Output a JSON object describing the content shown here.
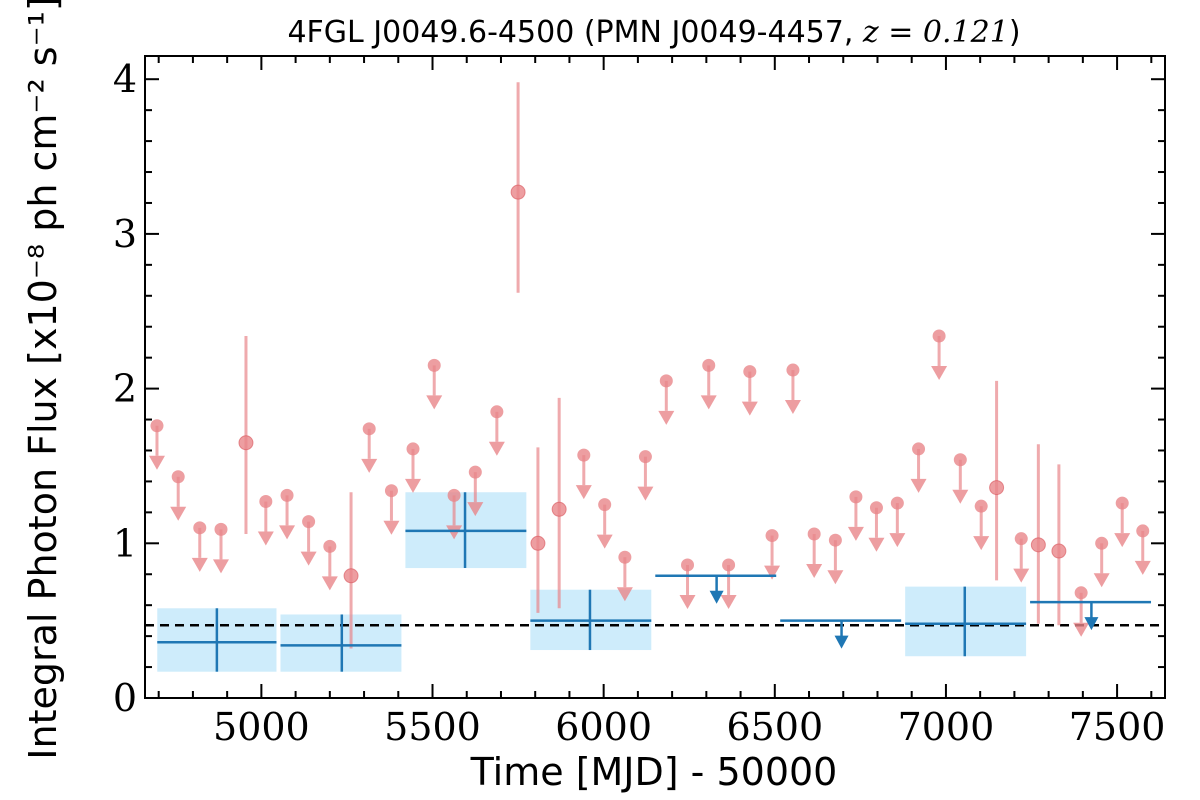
{
  "chart_data": {
    "type": "scatter",
    "title_parts": {
      "prefix": "4FGL J0049.6-4500 (PMN J0049-4457, ",
      "math": "z = 0.121",
      "suffix": ")"
    },
    "xlabel": "Time [MJD] - 50000",
    "ylabel": "Integral Photon Flux [x10⁻⁸ ph cm⁻² s⁻¹]",
    "xlim": [
      4660,
      7640
    ],
    "ylim": [
      0,
      4.15
    ],
    "xticks": [
      5000,
      5500,
      6000,
      6500,
      7000,
      7500
    ],
    "yticks": [
      0,
      1,
      2,
      3,
      4
    ],
    "reference_level": 0.47,
    "colors": {
      "short_bins": "#e8868a",
      "long_bins": "#1f77b4",
      "long_bin_band": "#a6dcf7",
      "reference_line": "#000000"
    },
    "series": [
      {
        "bin": "short",
        "detections": [
          {
            "x": 4955,
            "y": 1.65,
            "low": 1.06,
            "high": 2.34
          },
          {
            "x": 5262,
            "y": 0.79,
            "low": 0.32,
            "high": 1.33
          },
          {
            "x": 5750,
            "y": 3.27,
            "low": 2.62,
            "high": 3.98
          },
          {
            "x": 5808,
            "y": 1.0,
            "low": 0.55,
            "high": 1.62
          },
          {
            "x": 5870,
            "y": 1.22,
            "low": 0.58,
            "high": 1.94
          },
          {
            "x": 7148,
            "y": 1.36,
            "low": 0.76,
            "high": 2.05
          },
          {
            "x": 7270,
            "y": 0.99,
            "low": 0.48,
            "high": 1.64
          },
          {
            "x": 7330,
            "y": 0.95,
            "low": 0.47,
            "high": 1.51
          }
        ],
        "upper_limits": [
          {
            "x": 4695,
            "y": 1.76
          },
          {
            "x": 4757,
            "y": 1.43
          },
          {
            "x": 4820,
            "y": 1.1
          },
          {
            "x": 4882,
            "y": 1.09
          },
          {
            "x": 5013,
            "y": 1.27
          },
          {
            "x": 5075,
            "y": 1.31
          },
          {
            "x": 5138,
            "y": 1.14
          },
          {
            "x": 5200,
            "y": 0.98
          },
          {
            "x": 5315,
            "y": 1.74
          },
          {
            "x": 5380,
            "y": 1.34
          },
          {
            "x": 5443,
            "y": 1.61
          },
          {
            "x": 5505,
            "y": 2.15
          },
          {
            "x": 5563,
            "y": 1.31
          },
          {
            "x": 5625,
            "y": 1.46
          },
          {
            "x": 5688,
            "y": 1.85
          },
          {
            "x": 5942,
            "y": 1.57
          },
          {
            "x": 6003,
            "y": 1.25
          },
          {
            "x": 6062,
            "y": 0.91
          },
          {
            "x": 6122,
            "y": 1.56
          },
          {
            "x": 6183,
            "y": 2.05
          },
          {
            "x": 6245,
            "y": 0.86
          },
          {
            "x": 6307,
            "y": 2.15
          },
          {
            "x": 6365,
            "y": 0.86
          },
          {
            "x": 6427,
            "y": 2.11
          },
          {
            "x": 6492,
            "y": 1.05
          },
          {
            "x": 6553,
            "y": 2.12
          },
          {
            "x": 6615,
            "y": 1.06
          },
          {
            "x": 6677,
            "y": 1.02
          },
          {
            "x": 6737,
            "y": 1.3
          },
          {
            "x": 6797,
            "y": 1.23
          },
          {
            "x": 6858,
            "y": 1.26
          },
          {
            "x": 6920,
            "y": 1.61
          },
          {
            "x": 6980,
            "y": 2.34
          },
          {
            "x": 7042,
            "y": 1.54
          },
          {
            "x": 7103,
            "y": 1.24
          },
          {
            "x": 7220,
            "y": 1.03
          },
          {
            "x": 7395,
            "y": 0.68
          },
          {
            "x": 7455,
            "y": 1.0
          },
          {
            "x": 7515,
            "y": 1.26
          },
          {
            "x": 7575,
            "y": 1.08
          }
        ]
      },
      {
        "bin": "long",
        "detections": [
          {
            "x": 4870,
            "x0": 4690,
            "x1": 5050,
            "y": 0.36,
            "low": 0.17,
            "high": 0.58
          },
          {
            "x": 5235,
            "x0": 5050,
            "x1": 5415,
            "y": 0.34,
            "low": 0.17,
            "high": 0.54
          },
          {
            "x": 5595,
            "x0": 5415,
            "x1": 5780,
            "y": 1.08,
            "low": 0.84,
            "high": 1.33
          },
          {
            "x": 5960,
            "x0": 5780,
            "x1": 6145,
            "y": 0.5,
            "low": 0.31,
            "high": 0.7
          },
          {
            "x": 7055,
            "x0": 6875,
            "x1": 7240,
            "y": 0.48,
            "low": 0.27,
            "high": 0.72
          }
        ],
        "upper_limits": [
          {
            "x": 6330,
            "x0": 6145,
            "x1": 6510,
            "y": 0.79
          },
          {
            "x": 6695,
            "x0": 6510,
            "x1": 6875,
            "y": 0.5
          },
          {
            "x": 7425,
            "x0": 7240,
            "x1": 7605,
            "y": 0.62
          }
        ]
      }
    ]
  }
}
